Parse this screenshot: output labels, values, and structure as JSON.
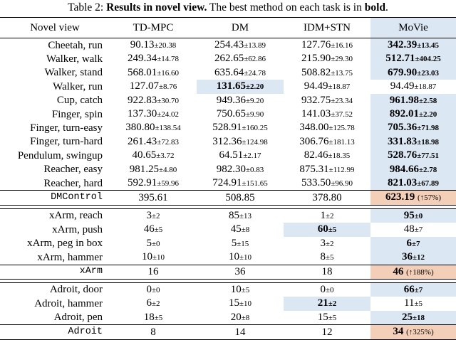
{
  "caption": {
    "prefix": "Table 2: ",
    "bold": "Results in novel view.",
    "middle": " The best method on each task is in ",
    "bold2": "bold",
    "suffix": "."
  },
  "headers": [
    "Novel view",
    "TD-MPC",
    "DM",
    "IDM+STN",
    "MoVie"
  ],
  "groups": [
    {
      "rows": [
        {
          "name": "Cheetah, run",
          "cells": [
            [
              "90.13",
              "±20.38"
            ],
            [
              "254.43",
              "±13.89"
            ],
            [
              "127.76",
              "±16.16"
            ],
            [
              "342.39",
              "±13.45"
            ]
          ],
          "best": [
            3
          ],
          "hl": [
            3
          ]
        },
        {
          "name": "Walker, walk",
          "cells": [
            [
              "249.34",
              "±14.78"
            ],
            [
              "262.65",
              "±62.86"
            ],
            [
              "215.90",
              "±29.30"
            ],
            [
              "512.71",
              "±404.25"
            ]
          ],
          "best": [
            3
          ],
          "hl": [
            3
          ]
        },
        {
          "name": "Walker, stand",
          "cells": [
            [
              "568.01",
              "±16.60"
            ],
            [
              "635.64",
              "±24.78"
            ],
            [
              "508.82",
              "±13.75"
            ],
            [
              "679.90",
              "±23.03"
            ]
          ],
          "best": [
            3
          ],
          "hl": [
            3
          ]
        },
        {
          "name": "Walker, run",
          "cells": [
            [
              "127.07",
              "±8.76"
            ],
            [
              "131.65",
              "±2.20"
            ],
            [
              "94.49",
              "±18.87"
            ],
            [
              "94.49",
              "±18.87"
            ]
          ],
          "best": [
            1
          ],
          "hl": [
            1
          ]
        },
        {
          "name": "Cup, catch",
          "cells": [
            [
              "922.83",
              "±30.70"
            ],
            [
              "949.36",
              "±9.20"
            ],
            [
              "932.75",
              "±23.34"
            ],
            [
              "961.98",
              "±2.58"
            ]
          ],
          "best": [
            3
          ],
          "hl": [
            3
          ]
        },
        {
          "name": "Finger, spin",
          "cells": [
            [
              "137.30",
              "±24.02"
            ],
            [
              "750.65",
              "±9.90"
            ],
            [
              "141.03",
              "±37.52"
            ],
            [
              "892.01",
              "±2.20"
            ]
          ],
          "best": [
            3
          ],
          "hl": [
            3
          ]
        },
        {
          "name": "Finger, turn-easy",
          "cells": [
            [
              "380.80",
              "±138.54"
            ],
            [
              "528.91",
              "±160.25"
            ],
            [
              "348.00",
              "±125.78"
            ],
            [
              "705.36",
              "±71.98"
            ]
          ],
          "best": [
            3
          ],
          "hl": [
            3
          ]
        },
        {
          "name": "Finger, turn-hard",
          "cells": [
            [
              "261.43",
              "±72.83"
            ],
            [
              "312.36",
              "±124.98"
            ],
            [
              "306.76",
              "±181.13"
            ],
            [
              "331.83",
              "±18.98"
            ]
          ],
          "best": [
            3
          ],
          "hl": [
            3
          ]
        },
        {
          "name": "Pendulum, swingup",
          "cells": [
            [
              "40.65",
              "±3.72"
            ],
            [
              "64.51",
              "±2.17"
            ],
            [
              "82.46",
              "±18.35"
            ],
            [
              "528.76",
              "±77.51"
            ]
          ],
          "best": [
            3
          ],
          "hl": [
            3
          ]
        },
        {
          "name": "Reacher, easy",
          "cells": [
            [
              "981.25",
              "±4.80"
            ],
            [
              "982.30",
              "±0.83"
            ],
            [
              "875.31",
              "±112.99"
            ],
            [
              "984.66",
              "±2.78"
            ]
          ],
          "best": [
            3
          ],
          "hl": [
            3
          ]
        },
        {
          "name": "Reacher, hard",
          "cells": [
            [
              "592.91",
              "±59.96"
            ],
            [
              "724.91",
              "±151.65"
            ],
            [
              "533.50",
              "±96.90"
            ],
            [
              "821.03",
              "±67.89"
            ]
          ],
          "best": [
            3
          ],
          "hl": [
            3
          ]
        }
      ],
      "total": {
        "name": "DMControl",
        "vals": [
          "395.61",
          "508.85",
          "378.80"
        ],
        "movie": "623.19",
        "gain": "(↑57%)"
      }
    },
    {
      "rows": [
        {
          "name": "xArm, reach",
          "cells": [
            [
              "3",
              "±2"
            ],
            [
              "85",
              "±13"
            ],
            [
              "1",
              "±2"
            ],
            [
              "95",
              "±0"
            ]
          ],
          "best": [
            3
          ],
          "hl": [
            3
          ]
        },
        {
          "name": "xArm, push",
          "cells": [
            [
              "46",
              "±5"
            ],
            [
              "45",
              "±8"
            ],
            [
              "60",
              "±5"
            ],
            [
              "48",
              "±7"
            ]
          ],
          "best": [
            2
          ],
          "hl": [
            2
          ]
        },
        {
          "name": "xArm, peg in box",
          "cells": [
            [
              "5",
              "±0"
            ],
            [
              "5",
              "±15"
            ],
            [
              "3",
              "±2"
            ],
            [
              "6",
              "±7"
            ]
          ],
          "best": [
            3
          ],
          "hl": [
            3
          ]
        },
        {
          "name": "xArm, hammer",
          "cells": [
            [
              "10",
              "±10"
            ],
            [
              "10",
              "±10"
            ],
            [
              "8",
              "±5"
            ],
            [
              "36",
              "±12"
            ]
          ],
          "best": [
            3
          ],
          "hl": [
            3
          ]
        }
      ],
      "total": {
        "name": "xArm",
        "vals": [
          "16",
          "36",
          "18"
        ],
        "movie": "46",
        "gain": "(↑188%)"
      }
    },
    {
      "rows": [
        {
          "name": "Adroit, door",
          "cells": [
            [
              "0",
              "±0"
            ],
            [
              "10",
              "±5"
            ],
            [
              "0",
              "±0"
            ],
            [
              "66",
              "±7"
            ]
          ],
          "best": [
            3
          ],
          "hl": [
            3
          ]
        },
        {
          "name": "Adroit, hammer",
          "cells": [
            [
              "6",
              "±2"
            ],
            [
              "15",
              "±10"
            ],
            [
              "21",
              "±2"
            ],
            [
              "11",
              "±5"
            ]
          ],
          "best": [
            2
          ],
          "hl": [
            2
          ]
        },
        {
          "name": "Adroit, pen",
          "cells": [
            [
              "18",
              "±5"
            ],
            [
              "20",
              "±8"
            ],
            [
              "15",
              "±5"
            ],
            [
              "25",
              "±18"
            ]
          ],
          "best": [
            3
          ],
          "hl": [
            3
          ]
        }
      ],
      "total": {
        "name": "Adroit",
        "vals": [
          "8",
          "14",
          "12"
        ],
        "movie": "34",
        "gain": "(↑325%)"
      }
    }
  ]
}
